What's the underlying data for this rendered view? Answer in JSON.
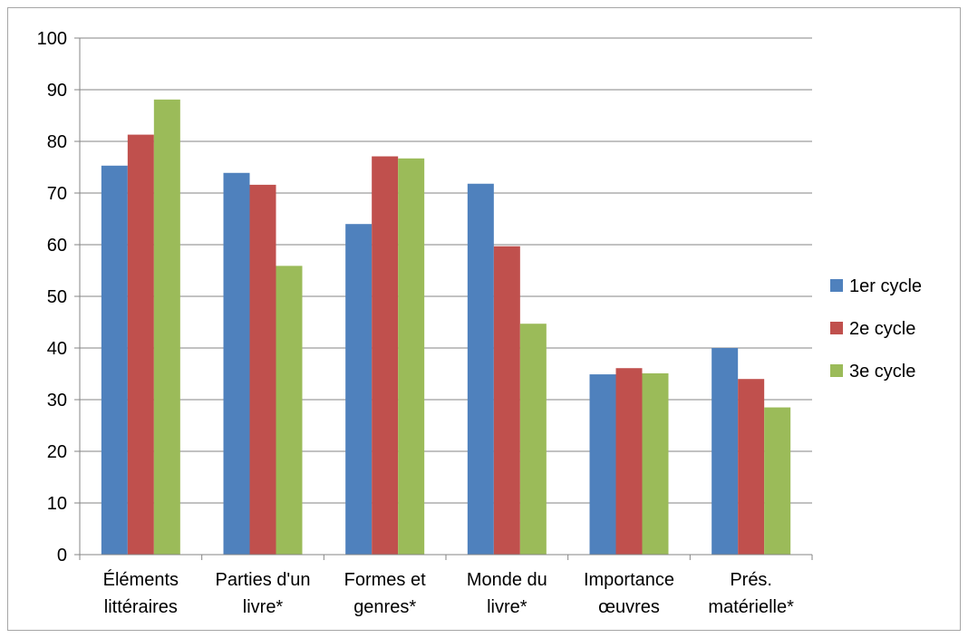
{
  "chart_data": {
    "type": "bar",
    "categories": [
      [
        "Éléments",
        "littéraires"
      ],
      [
        "Parties d'un",
        "livre*"
      ],
      [
        "Formes et",
        "genres*"
      ],
      [
        "Monde du",
        "livre*"
      ],
      [
        "Importance",
        "œuvres"
      ],
      [
        "Prés.",
        "matérielle*"
      ]
    ],
    "series": [
      {
        "name": "1er cycle",
        "color": "#4f81bd",
        "values": [
          75.3,
          73.9,
          64.0,
          71.8,
          34.9,
          40.0
        ]
      },
      {
        "name": "2e cycle",
        "color": "#c0504d",
        "values": [
          81.3,
          71.6,
          77.1,
          59.7,
          36.1,
          34.0
        ]
      },
      {
        "name": "3e cycle",
        "color": "#9bbb59",
        "values": [
          88.1,
          55.9,
          76.7,
          44.7,
          35.1,
          28.5
        ]
      }
    ],
    "ylim": [
      0,
      100
    ],
    "yticks": [
      "0",
      "10",
      "20",
      "30",
      "40",
      "50",
      "60",
      "70",
      "80",
      "90",
      "100"
    ],
    "grid": true,
    "legend_position": "right"
  }
}
